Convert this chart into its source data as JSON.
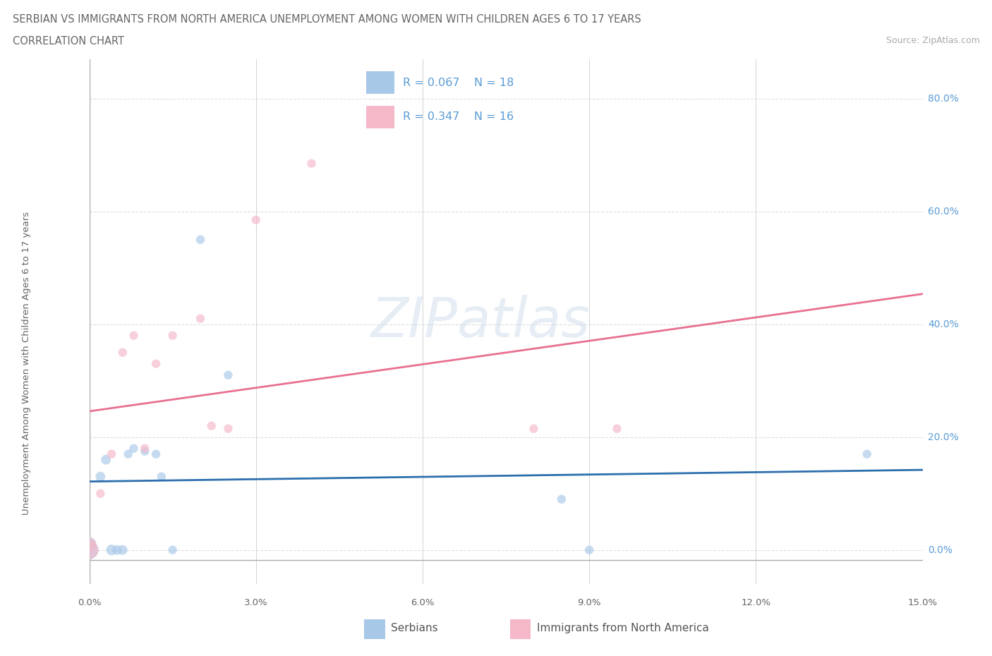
{
  "title_line1": "SERBIAN VS IMMIGRANTS FROM NORTH AMERICA UNEMPLOYMENT AMONG WOMEN WITH CHILDREN AGES 6 TO 17 YEARS",
  "title_line2": "CORRELATION CHART",
  "source": "Source: ZipAtlas.com",
  "ylabel": "Unemployment Among Women with Children Ages 6 to 17 years",
  "watermark": "ZIPatlas",
  "xmin": 0.0,
  "xmax": 0.15,
  "ymin": -0.06,
  "ymax": 0.87,
  "xticks": [
    0.0,
    0.03,
    0.06,
    0.09,
    0.12,
    0.15
  ],
  "xtick_labels": [
    "0.0%",
    "3.0%",
    "6.0%",
    "9.0%",
    "12.0%",
    "15.0%"
  ],
  "ytick_labels": [
    "0.0%",
    "20.0%",
    "40.0%",
    "60.0%",
    "80.0%"
  ],
  "ytick_values": [
    0.0,
    0.2,
    0.4,
    0.6,
    0.8
  ],
  "legend_labels": [
    "Serbians",
    "Immigrants from North America"
  ],
  "legend_R": [
    0.067,
    0.347
  ],
  "legend_N": [
    18,
    16
  ],
  "blue_color": "#a8c8e8",
  "pink_color": "#f4b8c8",
  "blue_line_color": "#2c6fad",
  "pink_line_color": "#e87090",
  "background_color": "#ffffff",
  "grid_color": "#dddddd",
  "serbians_x": [
    0.0,
    0.0,
    0.002,
    0.003,
    0.004,
    0.005,
    0.006,
    0.007,
    0.008,
    0.01,
    0.012,
    0.013,
    0.015,
    0.02,
    0.025,
    0.085,
    0.09,
    0.14
  ],
  "serbians_y": [
    0.0,
    0.01,
    0.13,
    0.16,
    0.0,
    0.0,
    0.0,
    0.17,
    0.18,
    0.175,
    0.17,
    0.13,
    0.0,
    0.55,
    0.31,
    0.09,
    0.0,
    0.17
  ],
  "serbians_size": [
    350,
    200,
    100,
    100,
    120,
    100,
    100,
    80,
    80,
    80,
    80,
    80,
    80,
    80,
    80,
    80,
    80,
    80
  ],
  "immigrants_x": [
    0.0,
    0.0,
    0.002,
    0.004,
    0.006,
    0.008,
    0.01,
    0.012,
    0.015,
    0.02,
    0.022,
    0.025,
    0.03,
    0.04,
    0.08,
    0.095
  ],
  "immigrants_y": [
    0.0,
    0.01,
    0.1,
    0.17,
    0.35,
    0.38,
    0.18,
    0.33,
    0.38,
    0.41,
    0.22,
    0.215,
    0.585,
    0.685,
    0.215,
    0.215
  ],
  "immigrants_size": [
    350,
    200,
    80,
    80,
    80,
    80,
    80,
    80,
    80,
    80,
    80,
    80,
    80,
    80,
    80,
    80
  ]
}
